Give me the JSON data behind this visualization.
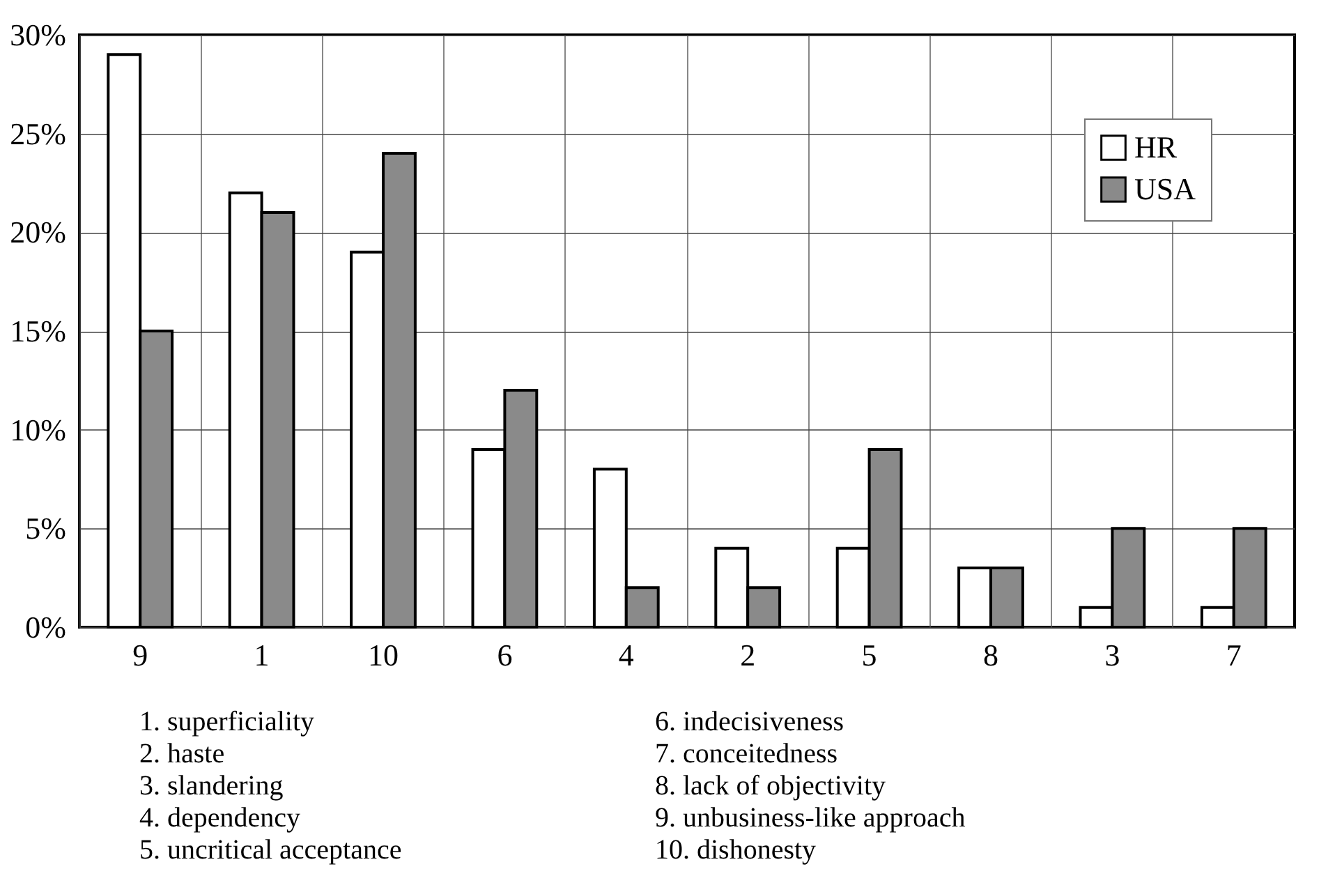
{
  "chart_data": {
    "type": "bar",
    "categories": [
      "9",
      "1",
      "10",
      "6",
      "4",
      "2",
      "5",
      "8",
      "3",
      "7"
    ],
    "series": [
      {
        "name": "HR",
        "color": "#ffffff",
        "values": [
          29,
          22,
          19,
          9,
          8,
          4,
          4,
          3,
          1,
          1
        ]
      },
      {
        "name": "USA",
        "color": "#8a8a8a",
        "values": [
          15,
          21,
          24,
          12,
          2,
          2,
          9,
          3,
          5,
          5
        ]
      }
    ],
    "ylim": [
      0,
      30
    ],
    "yticks": [
      {
        "value": 0,
        "label": "0%"
      },
      {
        "value": 5,
        "label": "5%"
      },
      {
        "value": 10,
        "label": "10%"
      },
      {
        "value": 15,
        "label": "15%"
      },
      {
        "value": 20,
        "label": "20%"
      },
      {
        "value": 25,
        "label": "25%"
      },
      {
        "value": 30,
        "label": "30%"
      }
    ],
    "grid": true,
    "legend": "top right",
    "annotations": [
      "1. superficiality",
      "2. haste",
      "3. slandering",
      "4. dependency",
      "5. uncritical acceptance",
      "6. indecisiveness",
      "7. conceitedness",
      "8. lack of objectivity",
      "9. unbusiness-like approach",
      "10. dishonesty"
    ]
  }
}
